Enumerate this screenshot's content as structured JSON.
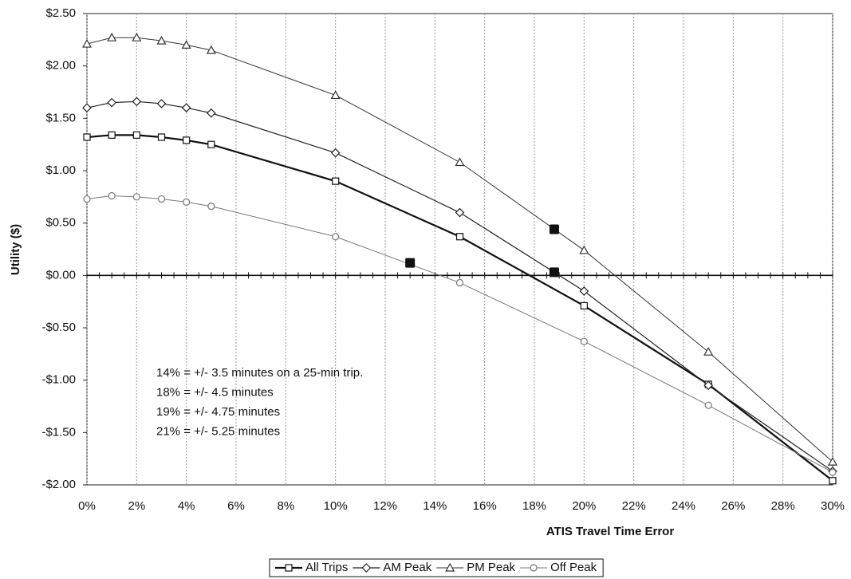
{
  "chart_data": {
    "type": "line",
    "x": [
      0,
      1,
      2,
      3,
      4,
      5,
      10,
      15,
      20,
      25,
      30
    ],
    "series": [
      {
        "name": "All Trips",
        "color": "#111111",
        "marker": "square",
        "width": 2.2,
        "values": [
          1.32,
          1.34,
          1.34,
          1.32,
          1.29,
          1.25,
          0.9,
          0.37,
          -0.29,
          -1.04,
          -1.96
        ]
      },
      {
        "name": "AM Peak",
        "color": "#222222",
        "marker": "diamond",
        "width": 1.2,
        "values": [
          1.6,
          1.65,
          1.66,
          1.64,
          1.6,
          1.55,
          1.17,
          0.6,
          -0.15,
          -1.05,
          -1.87
        ]
      },
      {
        "name": "PM Peak",
        "color": "#333333",
        "marker": "triangle",
        "width": 1.0,
        "values": [
          2.21,
          2.27,
          2.27,
          2.24,
          2.2,
          2.15,
          1.72,
          1.08,
          0.24,
          -0.73,
          -1.78
        ]
      },
      {
        "name": "Off Peak",
        "color": "#777777",
        "marker": "circle",
        "width": 1.0,
        "values": [
          0.73,
          0.76,
          0.75,
          0.73,
          0.7,
          0.66,
          0.37,
          -0.07,
          -0.63,
          -1.24,
          -1.88
        ]
      }
    ],
    "highlight_points": {
      "x": [
        13,
        18.8,
        18.8
      ],
      "y": [
        0.12,
        0.03,
        0.44
      ],
      "color": "#111111"
    },
    "x_label": "ATIS Travel Time Error",
    "y_label": "Utility ($)",
    "annotations": [
      "14% = +/- 3.5 minutes on a 25-min trip.",
      "18% = +/- 4.5 minutes",
      "19% = +/- 4.75 minutes",
      "21% = +/- 5.25 minutes"
    ],
    "xlim": [
      0,
      30
    ],
    "ylim": [
      -2,
      2.5
    ],
    "xticks": [
      {
        "value": 0,
        "label": "0%"
      },
      {
        "value": 2,
        "label": "2%"
      },
      {
        "value": 4,
        "label": "4%"
      },
      {
        "value": 6,
        "label": "6%"
      },
      {
        "value": 8,
        "label": "8%"
      },
      {
        "value": 10,
        "label": "10%"
      },
      {
        "value": 12,
        "label": "12%"
      },
      {
        "value": 14,
        "label": "14%"
      },
      {
        "value": 16,
        "label": "16%"
      },
      {
        "value": 18,
        "label": "18%"
      },
      {
        "value": 20,
        "label": "20%"
      },
      {
        "value": 22,
        "label": "22%"
      },
      {
        "value": 24,
        "label": "24%"
      },
      {
        "value": 26,
        "label": "26%"
      },
      {
        "value": 28,
        "label": "28%"
      },
      {
        "value": 30,
        "label": "30%"
      }
    ],
    "yticks": [
      {
        "value": 2.5,
        "label": "$2.50"
      },
      {
        "value": 2,
        "label": "$2.00"
      },
      {
        "value": 1.5,
        "label": "$1.50"
      },
      {
        "value": 1,
        "label": "$1.00"
      },
      {
        "value": 0.5,
        "label": "$0.50"
      },
      {
        "value": 0,
        "label": "$0.00"
      },
      {
        "value": -0.5,
        "label": "-$0.50"
      },
      {
        "value": -1,
        "label": "-$1.00"
      },
      {
        "value": -1.5,
        "label": "-$1.50"
      },
      {
        "value": -2,
        "label": "-$2.00"
      }
    ],
    "grid": "x",
    "legend": "bottom"
  }
}
